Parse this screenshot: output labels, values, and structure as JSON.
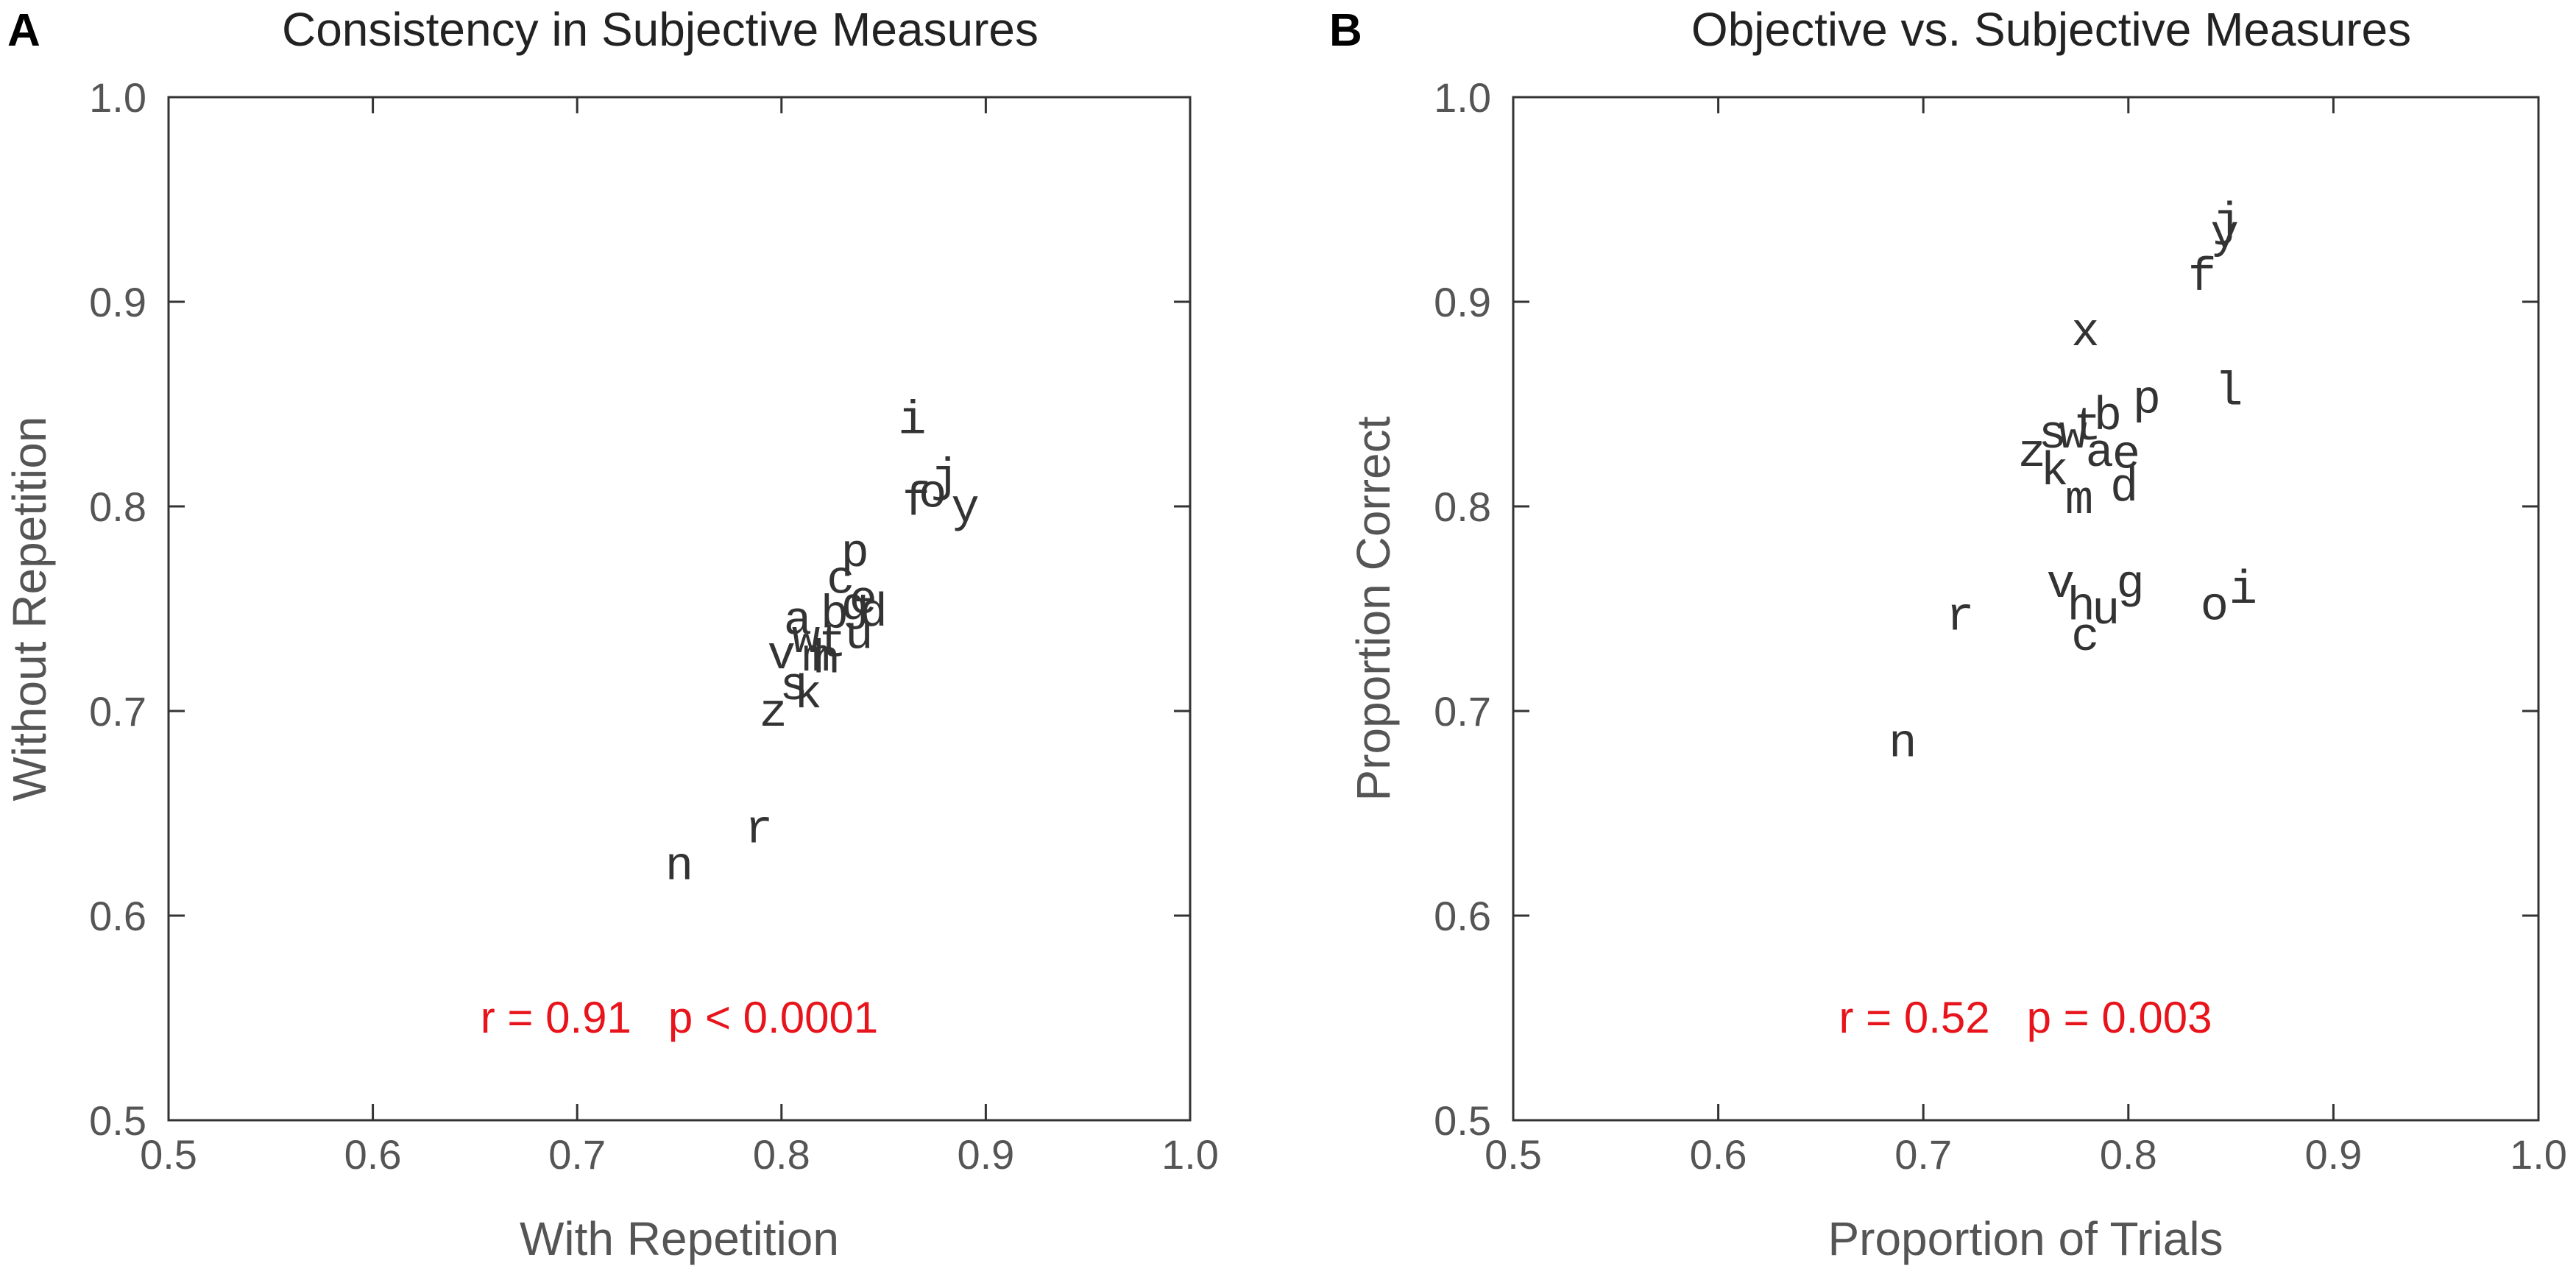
{
  "chart_data": [
    {
      "type": "scatter",
      "panel": "A",
      "title": "Consistency in Subjective Measures",
      "xlabel": "With Repetition",
      "ylabel": "Without Repetition",
      "xlim": [
        0.5,
        1.0
      ],
      "ylim": [
        0.5,
        1.0
      ],
      "xticks": [
        "0.5",
        "0.6",
        "0.7",
        "0.8",
        "0.9",
        "1.0"
      ],
      "yticks": [
        "0.5",
        "0.6",
        "0.7",
        "0.8",
        "0.9",
        "1.0"
      ],
      "annotation": "r = 0.91   p < 0.0001",
      "annotation_color": "#e8141c",
      "points": [
        {
          "label": "i",
          "x": 0.864,
          "y": 0.843
        },
        {
          "label": "j",
          "x": 0.88,
          "y": 0.815
        },
        {
          "label": "o",
          "x": 0.874,
          "y": 0.807
        },
        {
          "label": "f",
          "x": 0.866,
          "y": 0.803
        },
        {
          "label": "y",
          "x": 0.89,
          "y": 0.8
        },
        {
          "label": "p",
          "x": 0.836,
          "y": 0.778
        },
        {
          "label": "c",
          "x": 0.829,
          "y": 0.765
        },
        {
          "label": "e",
          "x": 0.84,
          "y": 0.755
        },
        {
          "label": "g",
          "x": 0.836,
          "y": 0.752
        },
        {
          "label": "d",
          "x": 0.845,
          "y": 0.749
        },
        {
          "label": "b",
          "x": 0.826,
          "y": 0.748
        },
        {
          "label": "a",
          "x": 0.808,
          "y": 0.745
        },
        {
          "label": "u",
          "x": 0.838,
          "y": 0.738
        },
        {
          "label": "w",
          "x": 0.812,
          "y": 0.736
        },
        {
          "label": "t",
          "x": 0.825,
          "y": 0.734
        },
        {
          "label": "v",
          "x": 0.8,
          "y": 0.728
        },
        {
          "label": "m",
          "x": 0.817,
          "y": 0.727
        },
        {
          "label": "h",
          "x": 0.822,
          "y": 0.726
        },
        {
          "label": "s",
          "x": 0.806,
          "y": 0.713
        },
        {
          "label": "k",
          "x": 0.813,
          "y": 0.709
        },
        {
          "label": "z",
          "x": 0.796,
          "y": 0.7
        },
        {
          "label": "r",
          "x": 0.789,
          "y": 0.643
        },
        {
          "label": "n",
          "x": 0.75,
          "y": 0.625
        }
      ]
    },
    {
      "type": "scatter",
      "panel": "B",
      "title": "Objective vs. Subjective Measures",
      "xlabel": "Proportion of Trials",
      "ylabel": "Proportion Correct",
      "xlim": [
        0.5,
        1.0
      ],
      "ylim": [
        0.5,
        1.0
      ],
      "xticks": [
        "0.5",
        "0.6",
        "0.7",
        "0.8",
        "0.9",
        "1.0"
      ],
      "yticks": [
        "0.5",
        "0.6",
        "0.7",
        "0.8",
        "0.9",
        "1.0"
      ],
      "annotation": "r = 0.52   p = 0.003",
      "annotation_color": "#e8141c",
      "points": [
        {
          "label": "j",
          "x": 0.848,
          "y": 0.94
        },
        {
          "label": "y",
          "x": 0.847,
          "y": 0.934
        },
        {
          "label": "f",
          "x": 0.836,
          "y": 0.913
        },
        {
          "label": "x",
          "x": 0.779,
          "y": 0.886
        },
        {
          "label": "l",
          "x": 0.849,
          "y": 0.857
        },
        {
          "label": "p",
          "x": 0.809,
          "y": 0.853
        },
        {
          "label": "b",
          "x": 0.79,
          "y": 0.845
        },
        {
          "label": "t",
          "x": 0.78,
          "y": 0.84
        },
        {
          "label": "s",
          "x": 0.763,
          "y": 0.836
        },
        {
          "label": "w",
          "x": 0.773,
          "y": 0.836
        },
        {
          "label": "a",
          "x": 0.786,
          "y": 0.827
        },
        {
          "label": "e",
          "x": 0.799,
          "y": 0.826
        },
        {
          "label": "z",
          "x": 0.753,
          "y": 0.827
        },
        {
          "label": "k",
          "x": 0.764,
          "y": 0.818
        },
        {
          "label": "d",
          "x": 0.798,
          "y": 0.81
        },
        {
          "label": "m",
          "x": 0.776,
          "y": 0.804
        },
        {
          "label": "v",
          "x": 0.767,
          "y": 0.763
        },
        {
          "label": "g",
          "x": 0.801,
          "y": 0.763
        },
        {
          "label": "i",
          "x": 0.856,
          "y": 0.76
        },
        {
          "label": "h",
          "x": 0.777,
          "y": 0.752
        },
        {
          "label": "u",
          "x": 0.789,
          "y": 0.75
        },
        {
          "label": "o",
          "x": 0.842,
          "y": 0.752
        },
        {
          "label": "r",
          "x": 0.718,
          "y": 0.747
        },
        {
          "label": "c",
          "x": 0.779,
          "y": 0.737
        },
        {
          "label": "n",
          "x": 0.69,
          "y": 0.685
        }
      ]
    }
  ]
}
